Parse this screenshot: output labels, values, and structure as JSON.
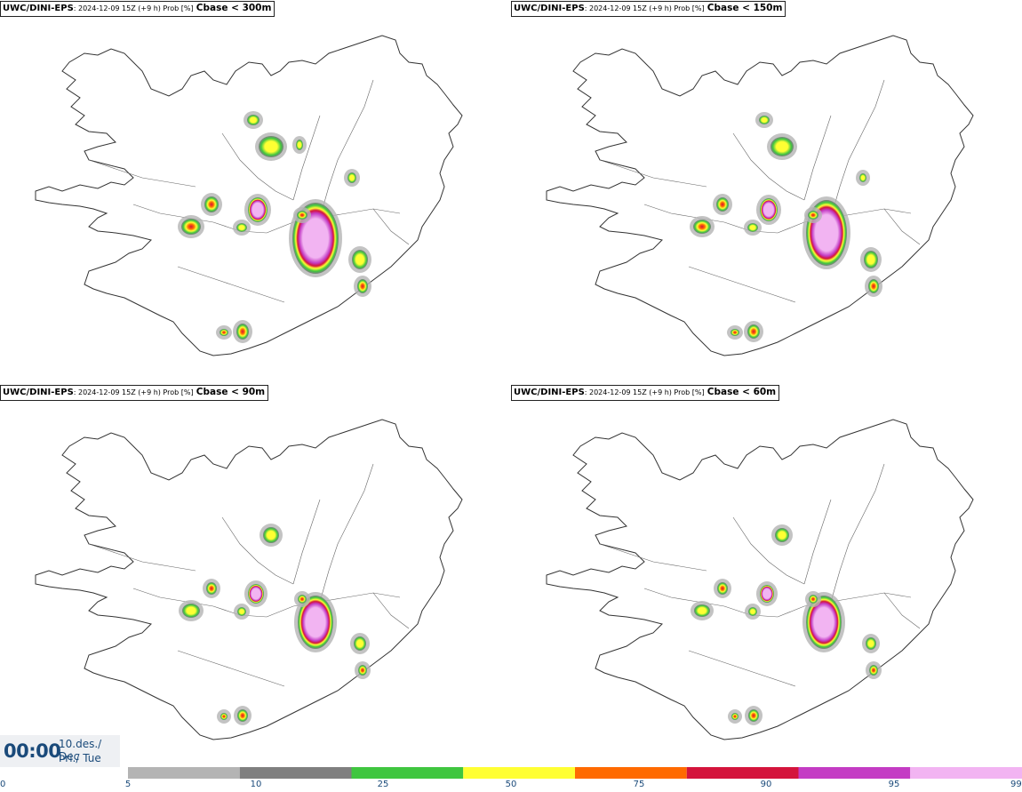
{
  "panels": [
    {
      "model": "UWC/DINI-EPS",
      "meta": ": 2024-12-09 15Z (+9 h) Prob [%]",
      "threshold": "Cbase < 300m"
    },
    {
      "model": "UWC/DINI-EPS",
      "meta": ": 2024-12-09 15Z (+9 h) Prob [%]",
      "threshold": "Cbase < 150m"
    },
    {
      "model": "UWC/DINI-EPS",
      "meta": ": 2024-12-09 15Z (+9 h) Prob [%]",
      "threshold": "Cbase < 90m"
    },
    {
      "model": "UWC/DINI-EPS",
      "meta": ": 2024-12-09 15Z (+9 h) Prob [%]",
      "threshold": "Cbase < 60m"
    }
  ],
  "valid_time": {
    "time": "00:00",
    "date": "10.des./ Dec",
    "weekday": "Þri./ Tue"
  },
  "colorbar": {
    "ticks": [
      "0",
      "5",
      "10",
      "25",
      "50",
      "75",
      "90",
      "95",
      "99"
    ],
    "colors": [
      "#b4b4b4",
      "#7f7f7f",
      "#3fc63f",
      "#ffff33",
      "#ff6a00",
      "#d4143c",
      "#c43cc4",
      "#f2b4f2"
    ]
  }
}
